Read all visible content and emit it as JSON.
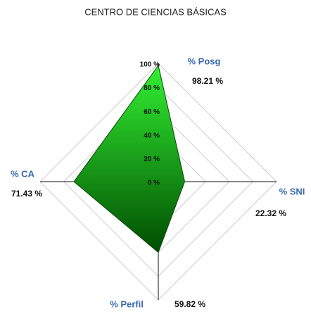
{
  "chart_data": {
    "type": "radar",
    "title": "CENTRO DE CIENCIAS BÁSICAS",
    "categories": [
      "% Posg",
      "% SNI",
      "% Perfil",
      "% CA"
    ],
    "values": [
      98.21,
      22.32,
      59.82,
      71.43
    ],
    "value_labels": [
      "98.21 %",
      "22.32 %",
      "59.82 %",
      "71.43 %"
    ],
    "color": "#1a9a1a",
    "rlim": [
      0,
      100
    ],
    "rticks": [
      {
        "value": 0,
        "label": "0 %"
      },
      {
        "value": 20,
        "label": "20 %"
      },
      {
        "value": 40,
        "label": "40 %"
      },
      {
        "value": 60,
        "label": "60 %"
      },
      {
        "value": 80,
        "label": "80 %"
      },
      {
        "value": 100,
        "label": "100 %"
      }
    ],
    "grid": true
  }
}
